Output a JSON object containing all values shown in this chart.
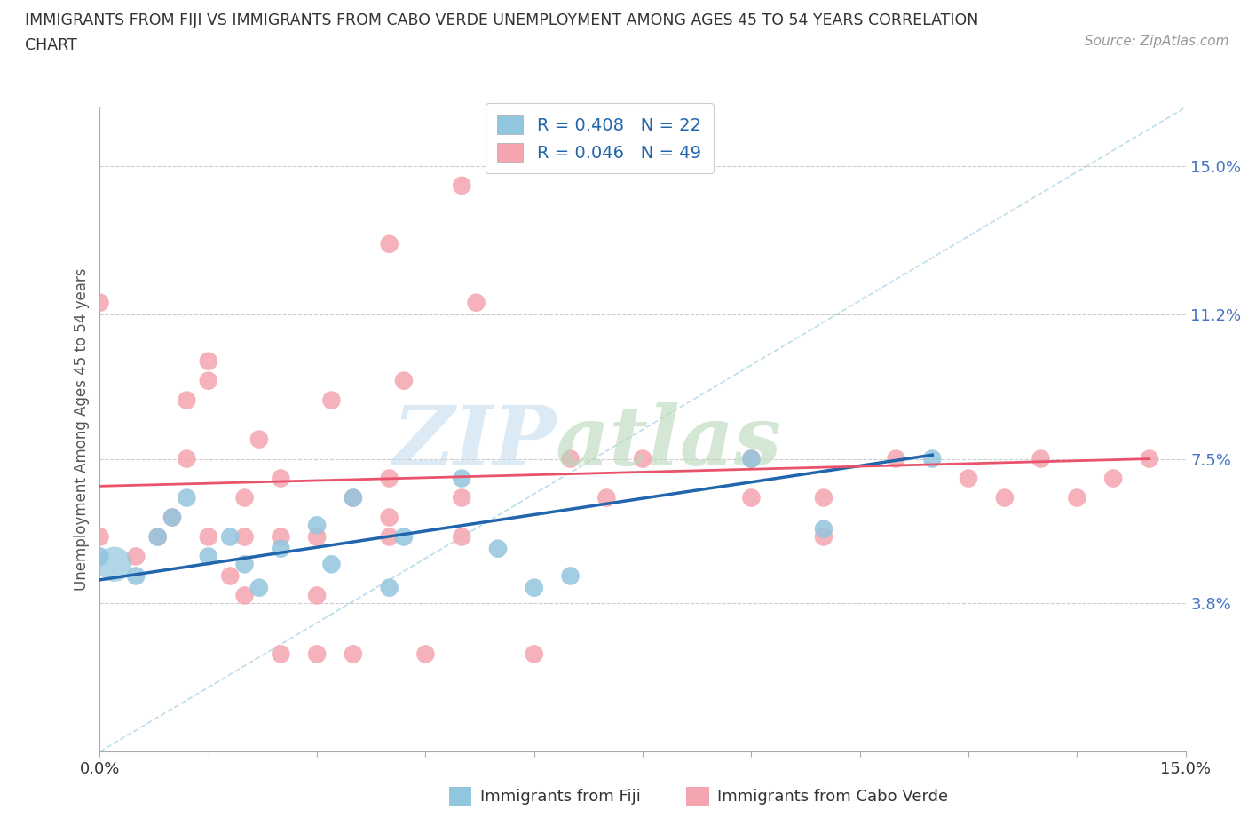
{
  "title_line1": "IMMIGRANTS FROM FIJI VS IMMIGRANTS FROM CABO VERDE UNEMPLOYMENT AMONG AGES 45 TO 54 YEARS CORRELATION",
  "title_line2": "CHART",
  "source": "Source: ZipAtlas.com",
  "ylabel": "Unemployment Among Ages 45 to 54 years",
  "xlabel_fiji": "Immigrants from Fiji",
  "xlabel_caboverde": "Immigrants from Cabo Verde",
  "xlim": [
    0.0,
    0.15
  ],
  "ylim": [
    0.0,
    0.165
  ],
  "yticks": [
    0.038,
    0.075,
    0.112,
    0.15
  ],
  "ytick_labels": [
    "3.8%",
    "7.5%",
    "11.2%",
    "15.0%"
  ],
  "fiji_R": 0.408,
  "fiji_N": 22,
  "caboverde_R": 0.046,
  "caboverde_N": 49,
  "fiji_color": "#92c5de",
  "caboverde_color": "#f4a5b0",
  "fiji_trend_color": "#2166ac",
  "caboverde_trend_color": "#e8526a",
  "diagonal_color": "#92c5de",
  "fiji_x": [
    0.0,
    0.005,
    0.008,
    0.01,
    0.012,
    0.015,
    0.018,
    0.02,
    0.022,
    0.025,
    0.03,
    0.032,
    0.035,
    0.04,
    0.042,
    0.05,
    0.055,
    0.06,
    0.065,
    0.09,
    0.1,
    0.115
  ],
  "fiji_y": [
    0.05,
    0.045,
    0.055,
    0.06,
    0.065,
    0.05,
    0.055,
    0.048,
    0.042,
    0.052,
    0.058,
    0.048,
    0.065,
    0.042,
    0.055,
    0.07,
    0.052,
    0.042,
    0.045,
    0.075,
    0.057,
    0.075
  ],
  "caboverde_x": [
    0.0,
    0.0,
    0.005,
    0.008,
    0.01,
    0.012,
    0.012,
    0.015,
    0.015,
    0.015,
    0.018,
    0.02,
    0.02,
    0.02,
    0.022,
    0.025,
    0.03,
    0.03,
    0.032,
    0.035,
    0.04,
    0.04,
    0.042,
    0.05,
    0.05,
    0.052,
    0.065,
    0.07,
    0.075,
    0.09,
    0.09,
    0.1,
    0.1,
    0.11,
    0.12,
    0.125,
    0.13,
    0.135,
    0.14,
    0.145,
    0.04,
    0.05,
    0.06,
    0.025,
    0.025,
    0.03,
    0.035,
    0.04,
    0.045
  ],
  "caboverde_y": [
    0.055,
    0.115,
    0.05,
    0.055,
    0.06,
    0.075,
    0.09,
    0.095,
    0.1,
    0.055,
    0.045,
    0.04,
    0.055,
    0.065,
    0.08,
    0.055,
    0.04,
    0.055,
    0.09,
    0.065,
    0.055,
    0.07,
    0.095,
    0.055,
    0.065,
    0.115,
    0.075,
    0.065,
    0.075,
    0.065,
    0.075,
    0.055,
    0.065,
    0.075,
    0.07,
    0.065,
    0.075,
    0.065,
    0.07,
    0.075,
    0.13,
    0.145,
    0.025,
    0.025,
    0.07,
    0.025,
    0.025,
    0.06,
    0.025
  ],
  "fiji_trend_x": [
    0.0,
    0.115
  ],
  "fiji_trend_y": [
    0.044,
    0.076
  ],
  "caboverde_trend_x": [
    0.0,
    0.145
  ],
  "caboverde_trend_y": [
    0.068,
    0.075
  ]
}
